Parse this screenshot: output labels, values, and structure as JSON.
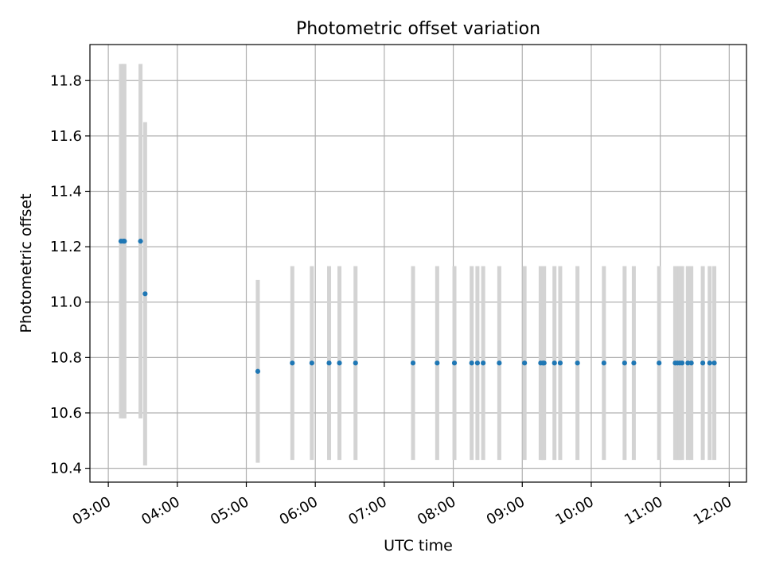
{
  "chart_data": {
    "type": "scatter",
    "title": "Photometric offset variation",
    "xlabel": "UTC time",
    "ylabel": "Photometric offset",
    "x_axis_kind": "time",
    "xlim": [
      "02:44",
      "12:15"
    ],
    "ylim": [
      10.35,
      11.93
    ],
    "x_ticks": [
      "03:00",
      "04:00",
      "05:00",
      "06:00",
      "07:00",
      "08:00",
      "09:00",
      "10:00",
      "11:00",
      "12:00"
    ],
    "y_ticks": [
      "10.4",
      "10.6",
      "10.8",
      "11.0",
      "11.2",
      "11.4",
      "11.6",
      "11.8"
    ],
    "grid": true,
    "colors": {
      "point": "#1f77b4",
      "errorbar": "#d3d3d3",
      "grid": "#b0b0b0",
      "axis": "#000000"
    },
    "series": [
      {
        "points": [
          {
            "x": "03:11",
            "y": 11.22,
            "err": 0.64
          },
          {
            "x": "03:13",
            "y": 11.22,
            "err": 0.64
          },
          {
            "x": "03:14",
            "y": 11.22,
            "err": 0.64
          },
          {
            "x": "03:28",
            "y": 11.22,
            "err": 0.64
          },
          {
            "x": "03:32",
            "y": 11.03,
            "err": 0.62
          },
          {
            "x": "05:10",
            "y": 10.75,
            "err": 0.33
          },
          {
            "x": "05:40",
            "y": 10.78,
            "err": 0.35
          },
          {
            "x": "05:57",
            "y": 10.78,
            "err": 0.35
          },
          {
            "x": "06:12",
            "y": 10.78,
            "err": 0.35
          },
          {
            "x": "06:21",
            "y": 10.78,
            "err": 0.35
          },
          {
            "x": "06:35",
            "y": 10.78,
            "err": 0.35
          },
          {
            "x": "07:25",
            "y": 10.78,
            "err": 0.35
          },
          {
            "x": "07:46",
            "y": 10.78,
            "err": 0.35
          },
          {
            "x": "08:01",
            "y": 10.78,
            "err": 0.35
          },
          {
            "x": "08:16",
            "y": 10.78,
            "err": 0.35
          },
          {
            "x": "08:21",
            "y": 10.78,
            "err": 0.35
          },
          {
            "x": "08:26",
            "y": 10.78,
            "err": 0.35
          },
          {
            "x": "08:40",
            "y": 10.78,
            "err": 0.35
          },
          {
            "x": "09:02",
            "y": 10.78,
            "err": 0.35
          },
          {
            "x": "09:16",
            "y": 10.78,
            "err": 0.35
          },
          {
            "x": "09:18",
            "y": 10.78,
            "err": 0.35
          },
          {
            "x": "09:19",
            "y": 10.78,
            "err": 0.35
          },
          {
            "x": "09:28",
            "y": 10.78,
            "err": 0.35
          },
          {
            "x": "09:33",
            "y": 10.78,
            "err": 0.35
          },
          {
            "x": "09:48",
            "y": 10.78,
            "err": 0.35
          },
          {
            "x": "10:11",
            "y": 10.78,
            "err": 0.35
          },
          {
            "x": "10:29",
            "y": 10.78,
            "err": 0.35
          },
          {
            "x": "10:37",
            "y": 10.78,
            "err": 0.35
          },
          {
            "x": "10:59",
            "y": 10.78,
            "err": 0.35
          },
          {
            "x": "11:13",
            "y": 10.78,
            "err": 0.35
          },
          {
            "x": "11:15",
            "y": 10.78,
            "err": 0.35
          },
          {
            "x": "11:17",
            "y": 10.78,
            "err": 0.35
          },
          {
            "x": "11:19",
            "y": 10.78,
            "err": 0.35
          },
          {
            "x": "11:24",
            "y": 10.78,
            "err": 0.35
          },
          {
            "x": "11:27",
            "y": 10.78,
            "err": 0.35
          },
          {
            "x": "11:37",
            "y": 10.78,
            "err": 0.35
          },
          {
            "x": "11:43",
            "y": 10.78,
            "err": 0.35
          },
          {
            "x": "11:47",
            "y": 10.78,
            "err": 0.35
          }
        ]
      }
    ]
  }
}
